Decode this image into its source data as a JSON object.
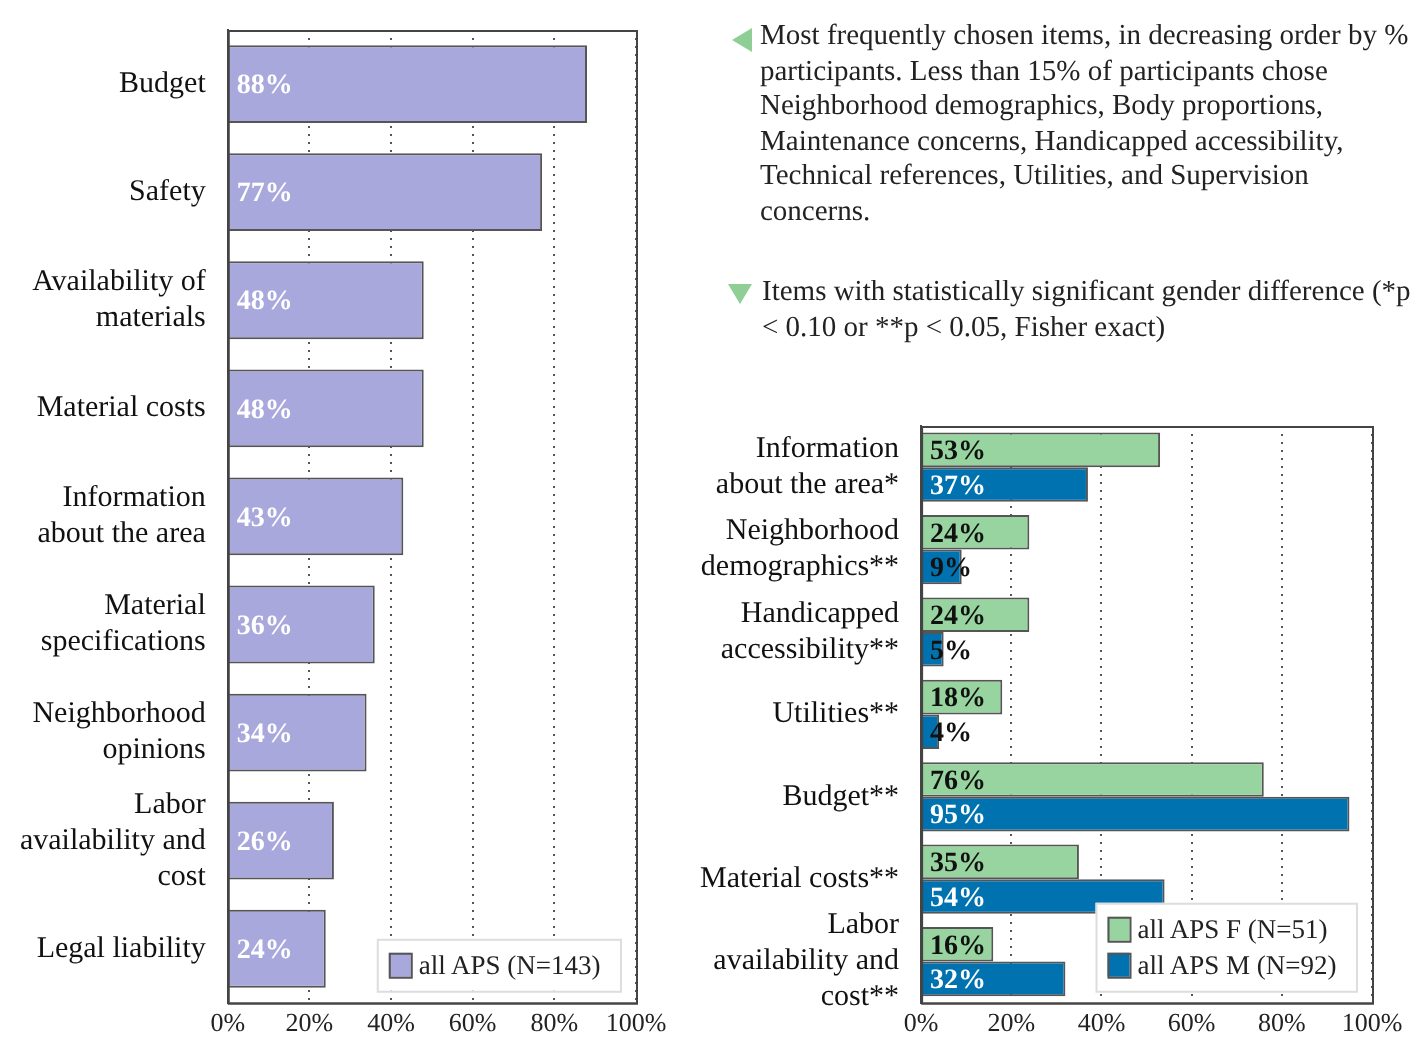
{
  "chart_data": [
    {
      "type": "bar",
      "orientation": "horizontal",
      "categories": [
        "Budget",
        "Safety",
        "Availability of materials",
        "Material costs",
        "Information about the area",
        "Material specifications",
        "Neighborhood opinions",
        "Labor availability and cost",
        "Legal liability"
      ],
      "series": [
        {
          "name": "all APS (N=143)",
          "color": "#a8a8dc",
          "values": [
            88,
            77,
            48,
            48,
            43,
            36,
            34,
            26,
            24
          ],
          "value_labels": [
            "88%",
            "77%",
            "48%",
            "48%",
            "43%",
            "36%",
            "34%",
            "26%",
            "24%"
          ]
        }
      ],
      "xlim": [
        0,
        100
      ],
      "xticks": [
        {
          "value": 0,
          "label": "0%"
        },
        {
          "value": 20,
          "label": "20%"
        },
        {
          "value": 40,
          "label": "40%"
        },
        {
          "value": 60,
          "label": "60%"
        },
        {
          "value": 80,
          "label": "80%"
        },
        {
          "value": 100,
          "label": "100%"
        }
      ],
      "grid": "x",
      "legend": "bottom right",
      "annotations": [
        "Most frequently chosen items, in decreasing order by % participants. Less than 15% of participants chose Neighborhood demographics, Body proportions, Maintenance concerns, Handicapped accessibility, Technical references, Utilities, and Supervision concerns."
      ]
    },
    {
      "type": "bar",
      "orientation": "horizontal",
      "title": "Items with statistically significant gender difference (*p < 0.10 or **p < 0.05, Fisher exact)",
      "categories": [
        "Information about the area*",
        "Neighborhood demographics**",
        "Handicapped accessibility**",
        "Utilities**",
        "Budget**",
        "Material costs**",
        "Labor availability and cost**"
      ],
      "series": [
        {
          "name": "all APS F (N=51)",
          "color": "#98d4a0",
          "values": [
            53,
            24,
            24,
            18,
            76,
            35,
            16
          ],
          "value_labels": [
            "53%",
            "24%",
            "24%",
            "18%",
            "76%",
            "35%",
            "16%"
          ]
        },
        {
          "name": "all APS M (N=92)",
          "color": "#0072b0",
          "values": [
            37,
            9,
            5,
            4,
            95,
            54,
            32
          ],
          "value_labels": [
            "37%",
            "9%",
            "5%",
            "4%",
            "95%",
            "54%",
            "32%"
          ]
        }
      ],
      "xlim": [
        0,
        100
      ],
      "xticks": [
        {
          "value": 0,
          "label": "0%"
        },
        {
          "value": 20,
          "label": "20%"
        },
        {
          "value": 40,
          "label": "40%"
        },
        {
          "value": 60,
          "label": "60%"
        },
        {
          "value": 80,
          "label": "80%"
        },
        {
          "value": 100,
          "label": "100%"
        }
      ],
      "grid": "x",
      "legend": "bottom right"
    }
  ]
}
